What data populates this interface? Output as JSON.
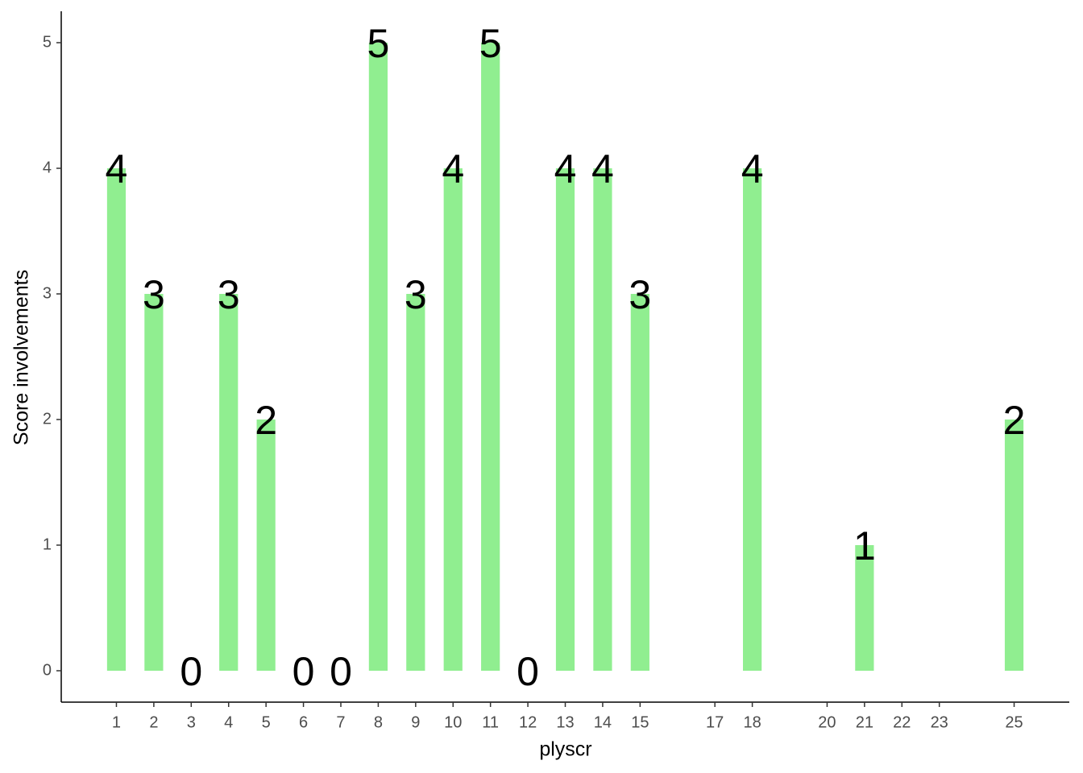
{
  "chart_data": {
    "type": "bar",
    "x_label": "plyscr",
    "y_label": "Score involvements",
    "x": [
      1,
      2,
      3,
      4,
      5,
      6,
      7,
      8,
      9,
      10,
      11,
      12,
      13,
      14,
      15,
      18,
      21,
      25
    ],
    "values": [
      4,
      3,
      0,
      3,
      2,
      0,
      0,
      5,
      3,
      4,
      5,
      0,
      4,
      4,
      3,
      4,
      1,
      2
    ],
    "color": "#90ee90",
    "xlim": [
      -0.475,
      26.475
    ],
    "xticks": [
      1,
      2,
      3,
      4,
      5,
      6,
      7,
      8,
      9,
      10,
      11,
      12,
      13,
      14,
      15,
      17,
      18,
      20,
      21,
      22,
      23,
      25
    ],
    "ylim": [
      -0.25,
      5.25
    ],
    "yticks": [
      0,
      1,
      2,
      3,
      4,
      5
    ]
  }
}
